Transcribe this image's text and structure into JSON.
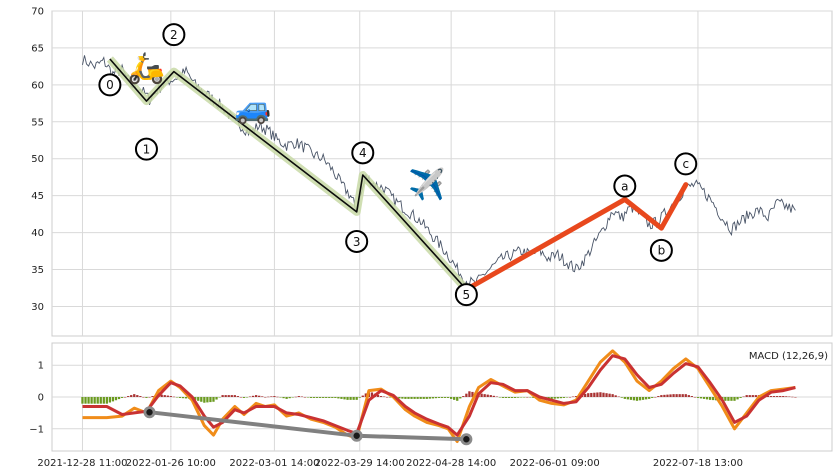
{
  "chart_data": [
    {
      "type": "line",
      "panel": "price",
      "title": "",
      "xlabel": "",
      "ylabel": "",
      "ylim": [
        26,
        70
      ],
      "yticks": [
        30,
        35,
        40,
        45,
        50,
        55,
        60,
        65,
        70
      ],
      "grid": true,
      "price_points": [
        [
          "2021-12-28",
          63.5
        ],
        [
          "2022-01-01",
          62.5
        ],
        [
          "2022-01-04",
          63.2
        ],
        [
          "2022-01-07",
          61.5
        ],
        [
          "2022-01-10",
          62.0
        ],
        [
          "2022-01-13",
          60.0
        ],
        [
          "2022-01-16",
          59.5
        ],
        [
          "2022-01-19",
          58.0
        ],
        [
          "2022-01-22",
          59.5
        ],
        [
          "2022-01-25",
          60.5
        ],
        [
          "2022-01-28",
          61.0
        ],
        [
          "2022-01-31",
          61.8
        ],
        [
          "2022-02-03",
          60.0
        ],
        [
          "2022-02-06",
          59.0
        ],
        [
          "2022-02-09",
          58.0
        ],
        [
          "2022-02-12",
          57.0
        ],
        [
          "2022-02-15",
          55.5
        ],
        [
          "2022-02-18",
          54.5
        ],
        [
          "2022-02-21",
          53.5
        ],
        [
          "2022-02-24",
          54.5
        ],
        [
          "2022-02-27",
          53.8
        ],
        [
          "2022-03-02",
          52.5
        ],
        [
          "2022-03-05",
          51.8
        ],
        [
          "2022-03-08",
          52.2
        ],
        [
          "2022-03-11",
          51.5
        ],
        [
          "2022-03-14",
          50.5
        ],
        [
          "2022-03-17",
          50.0
        ],
        [
          "2022-03-20",
          48.5
        ],
        [
          "2022-03-23",
          46.5
        ],
        [
          "2022-03-26",
          45.0
        ],
        [
          "2022-03-28",
          43.0
        ],
        [
          "2022-03-31",
          47.5
        ],
        [
          "2022-04-03",
          46.5
        ],
        [
          "2022-04-06",
          46.0
        ],
        [
          "2022-04-09",
          44.5
        ],
        [
          "2022-04-12",
          43.5
        ],
        [
          "2022-04-15",
          42.5
        ],
        [
          "2022-04-18",
          41.5
        ],
        [
          "2022-04-21",
          40.0
        ],
        [
          "2022-04-24",
          38.5
        ],
        [
          "2022-04-27",
          37.0
        ],
        [
          "2022-04-30",
          35.0
        ],
        [
          "2022-05-03",
          33.5
        ],
        [
          "2022-05-06",
          33.0
        ],
        [
          "2022-05-09",
          34.5
        ],
        [
          "2022-05-12",
          35.5
        ],
        [
          "2022-05-15",
          36.5
        ],
        [
          "2022-05-18",
          37.0
        ],
        [
          "2022-05-21",
          37.5
        ],
        [
          "2022-05-24",
          37.0
        ],
        [
          "2022-05-27",
          37.5
        ],
        [
          "2022-05-30",
          36.5
        ],
        [
          "2022-06-02",
          37.0
        ],
        [
          "2022-06-05",
          36.0
        ],
        [
          "2022-06-08",
          35.0
        ],
        [
          "2022-06-11",
          36.5
        ],
        [
          "2022-06-14",
          38.5
        ],
        [
          "2022-06-17",
          40.5
        ],
        [
          "2022-06-20",
          43.0
        ],
        [
          "2022-06-23",
          42.0
        ],
        [
          "2022-06-26",
          43.5
        ],
        [
          "2022-06-29",
          42.5
        ],
        [
          "2022-07-02",
          41.0
        ],
        [
          "2022-07-05",
          41.5
        ],
        [
          "2022-07-08",
          43.0
        ],
        [
          "2022-07-11",
          44.5
        ],
        [
          "2022-07-14",
          46.0
        ],
        [
          "2022-07-17",
          46.5
        ],
        [
          "2022-07-20",
          45.5
        ],
        [
          "2022-07-23",
          44.0
        ],
        [
          "2022-07-26",
          42.0
        ],
        [
          "2022-07-29",
          40.5
        ],
        [
          "2022-08-01",
          41.5
        ],
        [
          "2022-08-04",
          42.5
        ],
        [
          "2022-08-07",
          43.0
        ],
        [
          "2022-08-10",
          42.0
        ],
        [
          "2022-08-13",
          44.0
        ],
        [
          "2022-08-16",
          43.5
        ],
        [
          "2022-08-19",
          43.0
        ]
      ],
      "wave_points": [
        {
          "label": "0",
          "x": "2022-01-06",
          "y": 63.5
        },
        {
          "label": "1",
          "x": "2022-01-18",
          "y": 57.8
        },
        {
          "label": "2",
          "x": "2022-01-27",
          "y": 61.8
        },
        {
          "label": "3",
          "x": "2022-03-28",
          "y": 42.8
        },
        {
          "label": "4",
          "x": "2022-03-30",
          "y": 47.8
        },
        {
          "label": "5",
          "x": "2022-05-03",
          "y": 32.3
        },
        {
          "label": "a",
          "x": "2022-06-24",
          "y": 44.5
        },
        {
          "label": "b",
          "x": "2022-07-06",
          "y": 40.6
        },
        {
          "label": "c",
          "x": "2022-07-14",
          "y": 46.5
        }
      ],
      "impulse_color": "#0b0b0b",
      "impulse_band_color": "#c8d9a6",
      "corrective_color": "#e8481d",
      "icons": [
        {
          "icon": "scooter-icon",
          "glyph": "🛵",
          "x": "2022-01-18",
          "y": 62.3
        },
        {
          "icon": "car-icon",
          "glyph": "🚙",
          "x": "2022-02-22",
          "y": 56.9
        },
        {
          "icon": "airplane-icon",
          "glyph": "✈️",
          "x": "2022-04-20",
          "y": 46.5
        }
      ]
    },
    {
      "type": "line",
      "panel": "macd",
      "title": "MACD (12,26,9)",
      "xlabel": "",
      "ylabel": "",
      "ylim": [
        -1.7,
        1.7
      ],
      "yticks": [
        -1,
        0,
        1
      ],
      "grid": true,
      "x_ticks": [
        "2021-12-28 11:00",
        "2022-01-26 10:00",
        "2022-03-01 14:00",
        "2022-03-29 14:00",
        "2022-04-28 14:00",
        "2022-06-01 09:00",
        "2022-07-18 13:00"
      ],
      "x_tick_positions": [
        "2021-12-28",
        "2022-01-26",
        "2022-03-01",
        "2022-03-29",
        "2022-04-28",
        "2022-06-01",
        "2022-07-18"
      ],
      "x_range": [
        "2021-12-18",
        "2022-08-31"
      ],
      "series": [
        {
          "name": "",
          "color": "#f08c19",
          "values": [
            [
              "2021-12-28",
              -0.65
            ],
            [
              "2022-01-05",
              -0.65
            ],
            [
              "2022-01-10",
              -0.6
            ],
            [
              "2022-01-14",
              -0.35
            ],
            [
              "2022-01-18",
              -0.5
            ],
            [
              "2022-01-22",
              0.2
            ],
            [
              "2022-01-26",
              0.5
            ],
            [
              "2022-01-29",
              0.3
            ],
            [
              "2022-02-02",
              -0.1
            ],
            [
              "2022-02-06",
              -0.9
            ],
            [
              "2022-02-09",
              -1.2
            ],
            [
              "2022-02-12",
              -0.7
            ],
            [
              "2022-02-16",
              -0.3
            ],
            [
              "2022-02-19",
              -0.55
            ],
            [
              "2022-02-23",
              -0.2
            ],
            [
              "2022-02-26",
              -0.3
            ],
            [
              "2022-03-01",
              -0.25
            ],
            [
              "2022-03-05",
              -0.6
            ],
            [
              "2022-03-09",
              -0.5
            ],
            [
              "2022-03-13",
              -0.7
            ],
            [
              "2022-03-17",
              -0.8
            ],
            [
              "2022-03-21",
              -0.95
            ],
            [
              "2022-03-25",
              -1.2
            ],
            [
              "2022-03-28",
              -1.3
            ],
            [
              "2022-04-01",
              0.2
            ],
            [
              "2022-04-05",
              0.25
            ],
            [
              "2022-04-09",
              0.0
            ],
            [
              "2022-04-13",
              -0.4
            ],
            [
              "2022-04-16",
              -0.6
            ],
            [
              "2022-04-20",
              -0.8
            ],
            [
              "2022-04-24",
              -0.9
            ],
            [
              "2022-04-27",
              -1.0
            ],
            [
              "2022-04-30",
              -1.4
            ],
            [
              "2022-05-04",
              -0.3
            ],
            [
              "2022-05-07",
              0.3
            ],
            [
              "2022-05-11",
              0.55
            ],
            [
              "2022-05-15",
              0.35
            ],
            [
              "2022-05-19",
              0.15
            ],
            [
              "2022-05-23",
              0.2
            ],
            [
              "2022-05-27",
              -0.1
            ],
            [
              "2022-05-31",
              -0.2
            ],
            [
              "2022-06-04",
              -0.25
            ],
            [
              "2022-06-08",
              -0.1
            ],
            [
              "2022-06-12",
              0.5
            ],
            [
              "2022-06-16",
              1.1
            ],
            [
              "2022-06-20",
              1.45
            ],
            [
              "2022-06-24",
              1.1
            ],
            [
              "2022-06-28",
              0.5
            ],
            [
              "2022-07-02",
              0.2
            ],
            [
              "2022-07-06",
              0.5
            ],
            [
              "2022-07-10",
              0.9
            ],
            [
              "2022-07-14",
              1.2
            ],
            [
              "2022-07-18",
              0.9
            ],
            [
              "2022-07-22",
              0.3
            ],
            [
              "2022-07-26",
              -0.3
            ],
            [
              "2022-07-30",
              -1.0
            ],
            [
              "2022-08-03",
              -0.5
            ],
            [
              "2022-08-07",
              0.0
            ],
            [
              "2022-08-11",
              0.2
            ],
            [
              "2022-08-15",
              0.25
            ],
            [
              "2022-08-19",
              0.3
            ]
          ]
        },
        {
          "name": "",
          "color": "#c93232",
          "values": [
            [
              "2021-12-28",
              -0.3
            ],
            [
              "2022-01-05",
              -0.3
            ],
            [
              "2022-01-10",
              -0.55
            ],
            [
              "2022-01-14",
              -0.5
            ],
            [
              "2022-01-18",
              -0.45
            ],
            [
              "2022-01-22",
              0.05
            ],
            [
              "2022-01-26",
              0.45
            ],
            [
              "2022-01-29",
              0.35
            ],
            [
              "2022-02-02",
              0.0
            ],
            [
              "2022-02-06",
              -0.6
            ],
            [
              "2022-02-09",
              -0.95
            ],
            [
              "2022-02-12",
              -0.8
            ],
            [
              "2022-02-16",
              -0.4
            ],
            [
              "2022-02-19",
              -0.5
            ],
            [
              "2022-02-23",
              -0.3
            ],
            [
              "2022-02-26",
              -0.3
            ],
            [
              "2022-03-01",
              -0.3
            ],
            [
              "2022-03-05",
              -0.5
            ],
            [
              "2022-03-09",
              -0.55
            ],
            [
              "2022-03-13",
              -0.65
            ],
            [
              "2022-03-17",
              -0.75
            ],
            [
              "2022-03-21",
              -0.9
            ],
            [
              "2022-03-25",
              -1.05
            ],
            [
              "2022-03-28",
              -1.15
            ],
            [
              "2022-04-01",
              -0.1
            ],
            [
              "2022-04-05",
              0.2
            ],
            [
              "2022-04-09",
              0.05
            ],
            [
              "2022-04-13",
              -0.3
            ],
            [
              "2022-04-16",
              -0.5
            ],
            [
              "2022-04-20",
              -0.7
            ],
            [
              "2022-04-24",
              -0.85
            ],
            [
              "2022-04-27",
              -0.95
            ],
            [
              "2022-04-30",
              -1.2
            ],
            [
              "2022-05-04",
              -0.6
            ],
            [
              "2022-05-07",
              0.1
            ],
            [
              "2022-05-11",
              0.45
            ],
            [
              "2022-05-15",
              0.4
            ],
            [
              "2022-05-19",
              0.2
            ],
            [
              "2022-05-23",
              0.2
            ],
            [
              "2022-05-27",
              0.0
            ],
            [
              "2022-05-31",
              -0.1
            ],
            [
              "2022-06-04",
              -0.2
            ],
            [
              "2022-06-08",
              -0.15
            ],
            [
              "2022-06-12",
              0.3
            ],
            [
              "2022-06-16",
              0.85
            ],
            [
              "2022-06-20",
              1.3
            ],
            [
              "2022-06-24",
              1.2
            ],
            [
              "2022-06-28",
              0.7
            ],
            [
              "2022-07-02",
              0.3
            ],
            [
              "2022-07-06",
              0.4
            ],
            [
              "2022-07-10",
              0.75
            ],
            [
              "2022-07-14",
              1.05
            ],
            [
              "2022-07-18",
              0.95
            ],
            [
              "2022-07-22",
              0.45
            ],
            [
              "2022-07-26",
              -0.1
            ],
            [
              "2022-07-30",
              -0.8
            ],
            [
              "2022-08-03",
              -0.6
            ],
            [
              "2022-08-07",
              -0.1
            ],
            [
              "2022-08-11",
              0.15
            ],
            [
              "2022-08-15",
              0.2
            ],
            [
              "2022-08-19",
              0.3
            ]
          ]
        }
      ],
      "divergence_line": {
        "color": "#808080",
        "points": [
          [
            "2022-01-19",
            -0.48
          ],
          [
            "2022-03-28",
            -1.22
          ],
          [
            "2022-05-03",
            -1.33
          ]
        ]
      },
      "histogram_positive_color": "#a83232",
      "histogram_negative_color": "#6a9a1f"
    }
  ]
}
